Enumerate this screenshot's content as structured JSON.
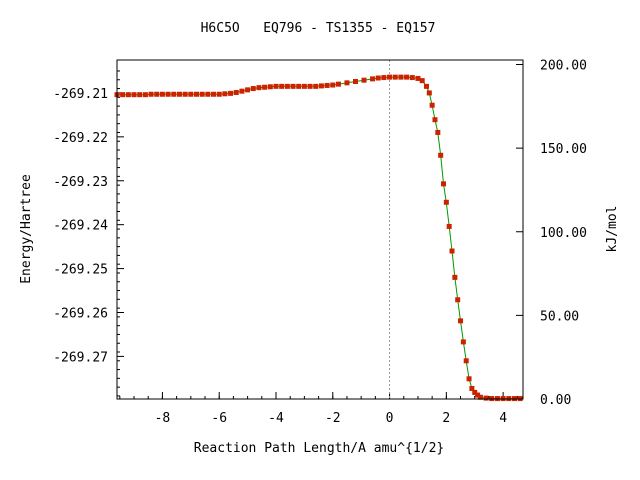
{
  "chart_data": {
    "type": "scatter",
    "title": "H6C5O   EQ796 - TS1355 - EQ157",
    "xlabel": "Reaction Path Length/A amu^{1/2}",
    "ylabel": "Energy/Hartree",
    "y2label": "kJ/mol",
    "xlim": [
      -9.6,
      4.7
    ],
    "ylim": [
      -269.2797,
      -269.2025
    ],
    "y2lim": [
      0,
      202.7
    ],
    "grid": false,
    "legend": "none",
    "ts_marker_x": 0,
    "x_ticks": [
      "-8",
      "-6",
      "-4",
      "-2",
      "0",
      "2",
      "4"
    ],
    "x_tick_values": [
      -8,
      -6,
      -4,
      -2,
      0,
      2,
      4
    ],
    "y_ticks": [
      "-269.21",
      "-269.22",
      "-269.23",
      "-269.24",
      "-269.25",
      "-269.26",
      "-269.27"
    ],
    "y_tick_values": [
      -269.21,
      -269.22,
      -269.23,
      -269.24,
      -269.25,
      -269.26,
      -269.27
    ],
    "y2_ticks": [
      "200.00",
      "150.00",
      "100.00",
      "50.00",
      "0.00"
    ],
    "y2_tick_values": [
      200,
      150,
      100,
      50,
      0
    ],
    "colors": {
      "markers": "#cc2200",
      "line": "#009900",
      "ts_line": "#999999"
    },
    "series": [
      {
        "x": [
          -9.6,
          -9.4,
          -9.2,
          -9.0,
          -8.8,
          -8.6,
          -8.4,
          -8.2,
          -8.0,
          -7.8,
          -7.6,
          -7.4,
          -7.2,
          -7.0,
          -6.8,
          -6.6,
          -6.4,
          -6.2,
          -6.0,
          -5.8,
          -5.6,
          -5.4,
          -5.2,
          -5.0,
          -4.8,
          -4.6,
          -4.4,
          -4.2,
          -4.0,
          -3.8,
          -3.6,
          -3.4,
          -3.2,
          -3.0,
          -2.8,
          -2.6,
          -2.4,
          -2.2,
          -2.0,
          -1.8,
          -1.5,
          -1.2,
          -0.9,
          -0.6,
          -0.4,
          -0.2,
          0.0,
          0.2,
          0.4,
          0.6,
          0.8,
          1.0,
          1.15,
          1.3,
          1.4,
          1.5,
          1.6,
          1.7,
          1.8,
          1.9,
          2.0,
          2.1,
          2.2,
          2.3,
          2.4,
          2.5,
          2.6,
          2.7,
          2.8,
          2.9,
          3.0,
          3.1,
          3.2,
          3.4,
          3.6,
          3.8,
          4.0,
          4.2,
          4.4,
          4.6
        ],
        "y": [
          -269.2104,
          -269.2104,
          -269.2104,
          -269.2104,
          -269.2104,
          -269.2104,
          -269.2103,
          -269.2103,
          -269.2103,
          -269.2103,
          -269.2103,
          -269.2103,
          -269.2103,
          -269.2103,
          -269.2103,
          -269.2103,
          -269.2103,
          -269.2103,
          -269.2103,
          -269.2102,
          -269.2101,
          -269.2099,
          -269.2096,
          -269.2093,
          -269.209,
          -269.2088,
          -269.2087,
          -269.2086,
          -269.2085,
          -269.2085,
          -269.2085,
          -269.2085,
          -269.2085,
          -269.2085,
          -269.2085,
          -269.2085,
          -269.2084,
          -269.2083,
          -269.2082,
          -269.208,
          -269.2077,
          -269.2074,
          -269.2071,
          -269.2068,
          -269.2066,
          -269.2065,
          -269.2064,
          -269.2064,
          -269.2064,
          -269.2064,
          -269.2065,
          -269.2067,
          -269.2072,
          -269.2085,
          -269.21,
          -269.2128,
          -269.2161,
          -269.219,
          -269.2242,
          -269.2307,
          -269.2349,
          -269.2404,
          -269.246,
          -269.252,
          -269.2571,
          -269.2619,
          -269.2667,
          -269.271,
          -269.2751,
          -269.2773,
          -269.2782,
          -269.2788,
          -269.2793,
          -269.2795,
          -269.2796,
          -269.2796,
          -269.2796,
          -269.2796,
          -269.2796,
          -269.2796
        ]
      }
    ]
  }
}
